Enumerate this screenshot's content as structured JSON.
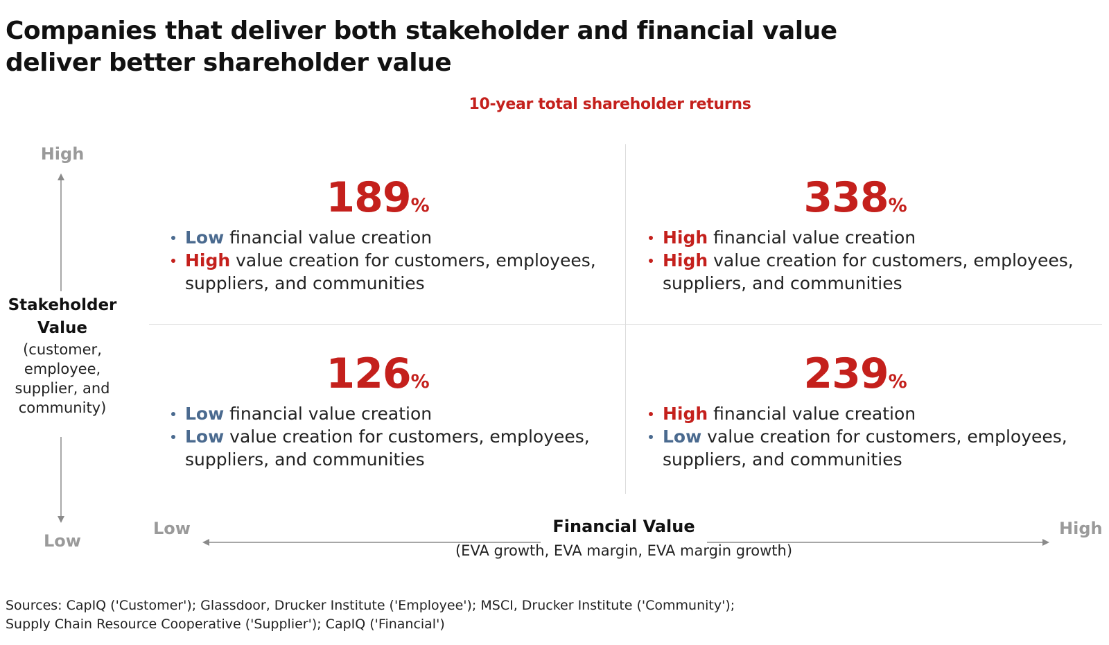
{
  "title": {
    "line1": "Companies that deliver both stakeholder and financial value",
    "line2": "deliver better shareholder value"
  },
  "subtitle": "10-year total shareholder returns",
  "y_axis": {
    "high": "High",
    "low": "Low",
    "title_line1": "Stakeholder",
    "title_line2": "Value",
    "desc_lines": [
      "(customer,",
      "employee,",
      "supplier, and",
      "community)"
    ]
  },
  "x_axis": {
    "low": "Low",
    "high": "High",
    "title": "Financial Value",
    "desc": "(EVA growth, EVA margin, EVA margin growth)"
  },
  "quadrants": {
    "top_left": {
      "value": "189",
      "unit": "%",
      "bullets": [
        {
          "level": "Low",
          "text": " financial value creation",
          "color": "low"
        },
        {
          "level": "High",
          "text": " value creation for customers, employees, suppliers, and communities",
          "color": "high"
        }
      ]
    },
    "top_right": {
      "value": "338",
      "unit": "%",
      "bullets": [
        {
          "level": "High",
          "text": " financial value creation",
          "color": "high"
        },
        {
          "level": "High",
          "text": " value creation for customers, employees, suppliers, and communities",
          "color": "high"
        }
      ]
    },
    "bottom_left": {
      "value": "126",
      "unit": "%",
      "bullets": [
        {
          "level": "Low",
          "text": " financial value creation",
          "color": "low"
        },
        {
          "level": "Low",
          "text": " value creation for customers, employees, suppliers, and communities",
          "color": "low"
        }
      ]
    },
    "bottom_right": {
      "value": "239",
      "unit": "%",
      "bullets": [
        {
          "level": "High",
          "text": " financial value creation",
          "color": "high"
        },
        {
          "level": "Low",
          "text": " value creation for customers, employees, suppliers, and communities",
          "color": "low"
        }
      ]
    }
  },
  "sources": {
    "line1": "Sources: CapIQ ('Customer'); Glassdoor, Drucker Institute ('Employee'); MSCI, Drucker Institute ('Community');",
    "line2": "Supply Chain Resource Cooperative ('Supplier'); CapIQ ('Financial')"
  },
  "colors": {
    "accent_red": "#c4201c",
    "low_blue": "#4a6a8f",
    "axis_gray": "#9a9a9a",
    "divider": "#dcdcdc"
  }
}
